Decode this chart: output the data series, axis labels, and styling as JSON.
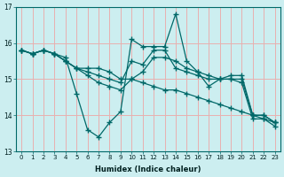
{
  "title": "",
  "xlabel": "Humidex (Indice chaleur)",
  "bg_color": "#cceef0",
  "grid_color": "#e8b0b0",
  "line_color": "#006868",
  "xlim": [
    -0.5,
    23.5
  ],
  "ylim": [
    13,
    17
  ],
  "yticks": [
    13,
    14,
    15,
    16,
    17
  ],
  "xticks": [
    0,
    1,
    2,
    3,
    4,
    5,
    6,
    7,
    8,
    9,
    10,
    11,
    12,
    13,
    14,
    15,
    16,
    17,
    18,
    19,
    20,
    21,
    22,
    23
  ],
  "series": [
    [
      15.8,
      15.7,
      15.8,
      15.7,
      15.6,
      14.6,
      13.6,
      13.4,
      13.8,
      14.1,
      16.1,
      15.9,
      15.9,
      15.9,
      16.8,
      15.5,
      15.2,
      14.8,
      15.0,
      15.0,
      14.9,
      13.9,
      13.9,
      13.7
    ],
    [
      15.8,
      15.7,
      15.8,
      15.7,
      15.5,
      15.3,
      15.3,
      15.3,
      15.2,
      15.0,
      15.0,
      14.9,
      14.8,
      14.7,
      14.7,
      14.6,
      14.5,
      14.4,
      14.3,
      14.2,
      14.1,
      14.0,
      13.9,
      13.8
    ],
    [
      15.8,
      15.7,
      15.8,
      15.7,
      15.5,
      15.3,
      15.2,
      15.1,
      15.0,
      14.9,
      15.5,
      15.4,
      15.8,
      15.8,
      15.3,
      15.2,
      15.1,
      15.0,
      15.0,
      15.0,
      15.0,
      14.0,
      14.0,
      13.8
    ],
    [
      15.8,
      15.7,
      15.8,
      15.7,
      15.5,
      15.3,
      15.1,
      14.9,
      14.8,
      14.7,
      15.0,
      15.2,
      15.6,
      15.6,
      15.5,
      15.3,
      15.2,
      15.1,
      15.0,
      15.1,
      15.1,
      14.0,
      14.0,
      13.8
    ]
  ]
}
